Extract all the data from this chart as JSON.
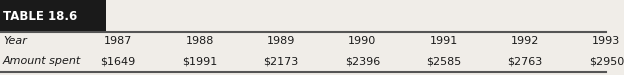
{
  "title": "TABLE 18.6",
  "title_bg": "#1a1a1a",
  "title_color": "#ffffff",
  "title_fontsize": 8.5,
  "row1_label": "Year",
  "row2_label": "Amount spent",
  "years": [
    "1987",
    "1988",
    "1989",
    "1990",
    "1991",
    "1992",
    "1993"
  ],
  "amounts": [
    "$1649",
    "$1991",
    "$2173",
    "$2396",
    "$2585",
    "$2763",
    "$2950"
  ],
  "label_fontsize": 8,
  "data_fontsize": 8,
  "bg_color": "#f0ede8",
  "text_color": "#1a1a1a",
  "line_color": "#555555"
}
